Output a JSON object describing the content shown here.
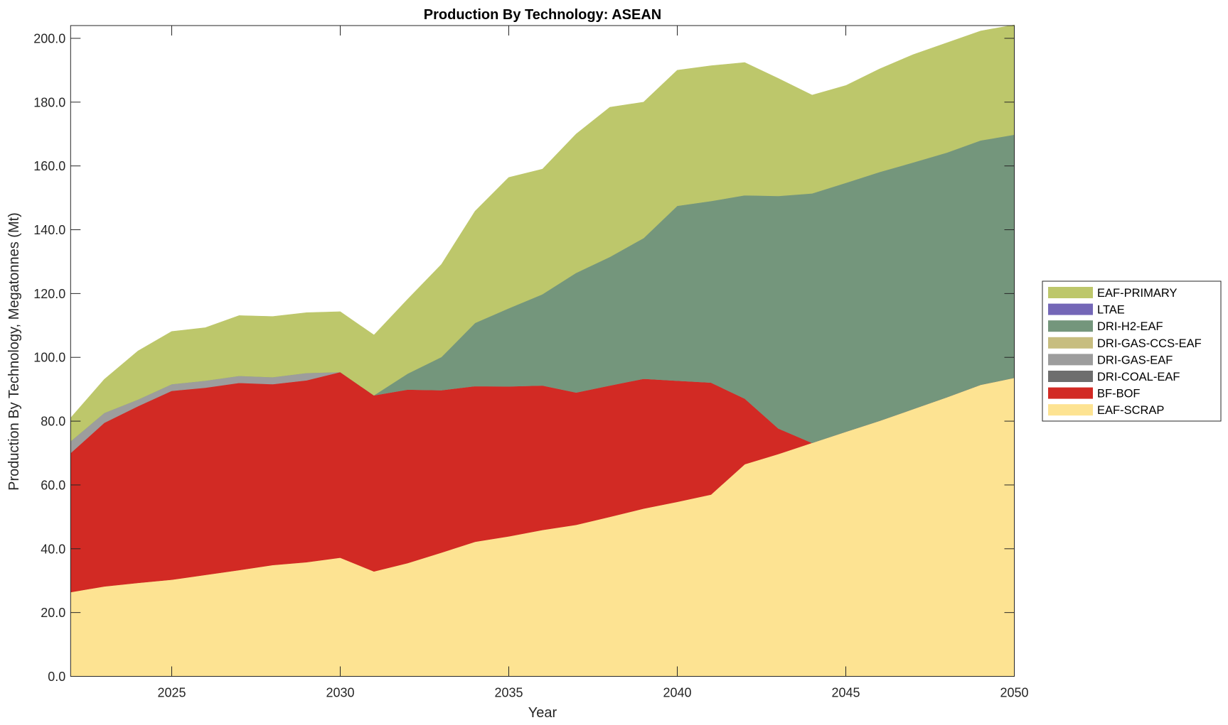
{
  "chart_data": {
    "type": "area",
    "stacked": true,
    "title": "Production By Technology: ASEAN",
    "xlabel": "Year",
    "ylabel": "Production By Technology, Megatonnes (Mt)",
    "xlim": [
      2022,
      2050
    ],
    "ylim": [
      0,
      204
    ],
    "x_ticks": [
      2025,
      2030,
      2035,
      2040,
      2045,
      2050
    ],
    "x_tick_labels": [
      "2025",
      "2030",
      "2035",
      "2040",
      "2045",
      "2050"
    ],
    "y_ticks": [
      0,
      20,
      40,
      60,
      80,
      100,
      120,
      140,
      160,
      180,
      200
    ],
    "y_tick_labels": [
      "0.0",
      "20.0",
      "40.0",
      "60.0",
      "80.0",
      "100.0",
      "120.0",
      "140.0",
      "160.0",
      "180.0",
      "200.0"
    ],
    "grid": false,
    "legend_position": "right",
    "x": [
      2022,
      2023,
      2024,
      2025,
      2026,
      2027,
      2028,
      2029,
      2030,
      2031,
      2032,
      2033,
      2034,
      2035,
      2036,
      2037,
      2038,
      2039,
      2040,
      2041,
      2042,
      2043,
      2044,
      2045,
      2046,
      2047,
      2048,
      2049,
      2050
    ],
    "series": [
      {
        "name": "EAF-SCRAP",
        "color": "#fde392",
        "values": [
          26.4,
          28.2,
          29.3,
          30.3,
          31.8,
          33.3,
          34.9,
          35.8,
          37.2,
          32.9,
          35.5,
          38.8,
          42.2,
          43.9,
          45.9,
          47.5,
          50.0,
          52.6,
          54.7,
          57.0,
          66.5,
          69.7,
          73.2,
          76.7,
          80.1,
          83.8,
          87.5,
          91.4,
          93.6
        ]
      },
      {
        "name": "BF-BOF",
        "color": "#d22a24",
        "values": [
          43.6,
          51.3,
          55.4,
          59.2,
          58.7,
          58.7,
          56.7,
          57.0,
          58.2,
          55.2,
          54.4,
          50.9,
          48.8,
          47.0,
          45.3,
          41.5,
          41.2,
          40.7,
          38.0,
          35.1,
          20.6,
          8.0,
          0,
          0,
          0,
          0,
          0,
          0,
          0
        ]
      },
      {
        "name": "DRI-COAL-EAF",
        "color": "#6e6e6e",
        "values": [
          0,
          0,
          0,
          0,
          0,
          0,
          0,
          0,
          0,
          0,
          0,
          0,
          0,
          0,
          0,
          0,
          0,
          0,
          0,
          0,
          0,
          0,
          0,
          0,
          0,
          0,
          0,
          0,
          0
        ]
      },
      {
        "name": "DRI-GAS-EAF",
        "color": "#9d9d9d",
        "values": [
          3.7,
          3.1,
          2.1,
          2.1,
          2.2,
          2.2,
          2.2,
          2.3,
          0,
          0,
          0,
          0,
          0,
          0,
          0,
          0,
          0,
          0,
          0,
          0,
          0,
          0,
          0,
          0,
          0,
          0,
          0,
          0,
          0
        ]
      },
      {
        "name": "DRI-GAS-CCS-EAF",
        "color": "#c7bd7f",
        "values": [
          0,
          0,
          0,
          0,
          0,
          0,
          0,
          0,
          0,
          0,
          0,
          0,
          0,
          0,
          0,
          0,
          0,
          0,
          0,
          0,
          0,
          0,
          0,
          0,
          0,
          0,
          0,
          0,
          0
        ]
      },
      {
        "name": "DRI-H2-EAF",
        "color": "#74967c",
        "values": [
          0,
          0,
          0,
          0,
          0,
          0,
          0,
          0,
          0,
          0,
          5.0,
          10.4,
          19.8,
          24.5,
          28.6,
          37.5,
          40.3,
          44.1,
          54.8,
          56.9,
          63.7,
          72.9,
          78.2,
          78.0,
          78.0,
          77.3,
          76.7,
          76.6,
          76.2
        ]
      },
      {
        "name": "LTAE",
        "color": "#7467b7",
        "values": [
          0,
          0,
          0,
          0,
          0,
          0,
          0,
          0,
          0,
          0,
          0,
          0,
          0,
          0,
          0,
          0,
          0,
          0,
          0,
          0,
          0,
          0,
          0,
          0,
          0,
          0,
          0,
          0,
          0
        ]
      },
      {
        "name": "EAF-PRIMARY",
        "color": "#bdc76b",
        "values": [
          7.3,
          10.5,
          15.2,
          16.5,
          16.6,
          18.9,
          19.0,
          18.9,
          18.9,
          18.9,
          23.3,
          29.0,
          35.0,
          41.0,
          39.2,
          43.5,
          46.9,
          42.6,
          42.5,
          42.4,
          41.6,
          36.8,
          30.8,
          30.5,
          32.3,
          33.8,
          34.4,
          34.3,
          34.4
        ]
      }
    ],
    "legend_order": [
      "EAF-PRIMARY",
      "LTAE",
      "DRI-H2-EAF",
      "DRI-GAS-CCS-EAF",
      "DRI-GAS-EAF",
      "DRI-COAL-EAF",
      "BF-BOF",
      "EAF-SCRAP"
    ]
  }
}
